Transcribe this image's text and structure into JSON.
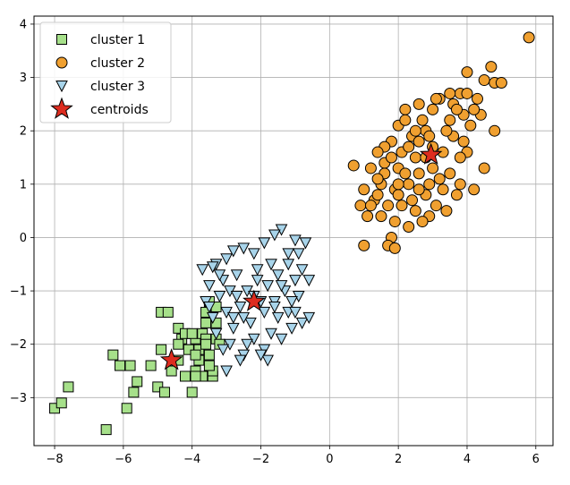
{
  "chart_data": {
    "type": "scatter",
    "title": "",
    "xlabel": "",
    "ylabel": "",
    "xlim": [
      -8.6,
      6.5
    ],
    "ylim": [
      -3.9,
      4.15
    ],
    "xticks": [
      -8,
      -6,
      -4,
      -2,
      0,
      2,
      4,
      6
    ],
    "yticks": [
      -3,
      -2,
      -1,
      0,
      1,
      2,
      3,
      4
    ],
    "xtick_labels": [
      "−8",
      "−6",
      "−4",
      "−2",
      "0",
      "2",
      "4",
      "6"
    ],
    "ytick_labels": [
      "−3",
      "−2",
      "−1",
      "0",
      "1",
      "2",
      "3",
      "4"
    ],
    "grid": true,
    "legend_position": "top-left",
    "series": [
      {
        "name": "cluster 1",
        "marker": "square",
        "color": "#a6e08a",
        "points": [
          [
            -8.0,
            -3.2
          ],
          [
            -7.8,
            -3.1
          ],
          [
            -7.6,
            -2.8
          ],
          [
            -6.5,
            -3.6
          ],
          [
            -6.3,
            -2.2
          ],
          [
            -6.1,
            -2.4
          ],
          [
            -5.9,
            -3.2
          ],
          [
            -5.8,
            -2.4
          ],
          [
            -5.7,
            -2.9
          ],
          [
            -5.6,
            -2.7
          ],
          [
            -5.2,
            -2.4
          ],
          [
            -5.0,
            -2.8
          ],
          [
            -4.9,
            -2.1
          ],
          [
            -4.8,
            -2.9
          ],
          [
            -4.9,
            -1.4
          ],
          [
            -4.7,
            -1.4
          ],
          [
            -4.6,
            -2.5
          ],
          [
            -4.4,
            -2.3
          ],
          [
            -4.3,
            -1.9
          ],
          [
            -4.2,
            -2.6
          ],
          [
            -4.1,
            -2.1
          ],
          [
            -4.0,
            -2.9
          ],
          [
            -4.4,
            -1.7
          ],
          [
            -4.2,
            -1.8
          ],
          [
            -3.9,
            -1.9
          ],
          [
            -3.8,
            -2.3
          ],
          [
            -3.7,
            -2.6
          ],
          [
            -3.6,
            -1.6
          ],
          [
            -3.5,
            -2.2
          ],
          [
            -3.4,
            -2.6
          ],
          [
            -3.5,
            -1.2
          ],
          [
            -3.6,
            -1.4
          ],
          [
            -3.3,
            -1.9
          ],
          [
            -3.4,
            -2.5
          ],
          [
            -3.9,
            -2.5
          ],
          [
            -3.5,
            -2.4
          ],
          [
            -3.7,
            -1.8
          ],
          [
            -3.2,
            -2.0
          ],
          [
            -3.3,
            -1.3
          ],
          [
            -4.4,
            -2.0
          ],
          [
            -3.8,
            -2.1
          ],
          [
            -4.0,
            -1.8
          ],
          [
            -3.9,
            -2.2
          ],
          [
            -3.6,
            -1.9
          ],
          [
            -3.9,
            -2.6
          ],
          [
            -3.3,
            -1.6
          ],
          [
            -3.6,
            -2.0
          ]
        ]
      },
      {
        "name": "cluster 2",
        "marker": "circle",
        "color": "#f0a030",
        "points": [
          [
            5.8,
            3.75
          ],
          [
            4.7,
            3.2
          ],
          [
            4.0,
            3.1
          ],
          [
            4.5,
            2.95
          ],
          [
            4.8,
            2.9
          ],
          [
            5.0,
            2.9
          ],
          [
            3.8,
            2.7
          ],
          [
            3.2,
            2.6
          ],
          [
            3.6,
            2.5
          ],
          [
            3.0,
            2.4
          ],
          [
            2.6,
            2.5
          ],
          [
            2.2,
            2.4
          ],
          [
            3.9,
            2.3
          ],
          [
            4.1,
            2.1
          ],
          [
            4.4,
            2.3
          ],
          [
            3.5,
            2.2
          ],
          [
            2.8,
            2.0
          ],
          [
            2.4,
            1.9
          ],
          [
            2.0,
            2.1
          ],
          [
            1.8,
            1.8
          ],
          [
            4.8,
            2.0
          ],
          [
            3.6,
            1.9
          ],
          [
            3.0,
            1.7
          ],
          [
            2.5,
            1.5
          ],
          [
            2.1,
            1.6
          ],
          [
            1.6,
            1.7
          ],
          [
            1.4,
            1.6
          ],
          [
            4.0,
            1.6
          ],
          [
            3.8,
            1.5
          ],
          [
            3.5,
            1.2
          ],
          [
            3.0,
            1.3
          ],
          [
            2.6,
            1.2
          ],
          [
            2.0,
            1.3
          ],
          [
            1.6,
            1.2
          ],
          [
            1.2,
            1.3
          ],
          [
            0.7,
            1.35
          ],
          [
            1.5,
            1.0
          ],
          [
            1.9,
            0.9
          ],
          [
            2.3,
            1.0
          ],
          [
            2.8,
            0.8
          ],
          [
            3.3,
            0.9
          ],
          [
            3.8,
            1.0
          ],
          [
            4.2,
            0.9
          ],
          [
            1.0,
            0.9
          ],
          [
            1.3,
            0.7
          ],
          [
            1.7,
            0.6
          ],
          [
            2.1,
            0.6
          ],
          [
            2.5,
            0.5
          ],
          [
            2.9,
            0.4
          ],
          [
            3.4,
            0.5
          ],
          [
            0.9,
            0.6
          ],
          [
            1.1,
            0.4
          ],
          [
            1.5,
            0.4
          ],
          [
            1.9,
            0.3
          ],
          [
            2.3,
            0.2
          ],
          [
            2.7,
            0.3
          ],
          [
            1.8,
            0.0
          ],
          [
            1.7,
            -0.15
          ],
          [
            1.9,
            -0.2
          ],
          [
            1.0,
            -0.15
          ],
          [
            4.0,
            2.7
          ],
          [
            3.4,
            2.0
          ],
          [
            2.7,
            2.2
          ],
          [
            2.3,
            1.7
          ],
          [
            3.2,
            1.1
          ],
          [
            3.7,
            0.8
          ],
          [
            2.6,
            0.9
          ],
          [
            2.0,
            0.8
          ],
          [
            1.4,
            0.8
          ],
          [
            3.1,
            2.6
          ],
          [
            2.9,
            1.9
          ],
          [
            4.3,
            2.6
          ],
          [
            2.2,
            2.2
          ],
          [
            3.3,
            1.6
          ],
          [
            2.4,
            0.7
          ],
          [
            1.6,
            1.4
          ],
          [
            3.7,
            2.4
          ],
          [
            4.2,
            2.4
          ],
          [
            2.0,
            1.0
          ],
          [
            1.2,
            0.6
          ],
          [
            2.8,
            1.5
          ],
          [
            3.1,
            0.6
          ],
          [
            2.5,
            2.0
          ],
          [
            1.8,
            1.5
          ],
          [
            3.9,
            1.8
          ],
          [
            4.5,
            1.3
          ],
          [
            2.2,
            1.2
          ],
          [
            3.5,
            2.7
          ],
          [
            2.9,
            1.0
          ],
          [
            1.4,
            1.1
          ],
          [
            2.6,
            1.8
          ]
        ]
      },
      {
        "name": "cluster 3",
        "marker": "triangle-down",
        "color": "#a8d4ea",
        "points": [
          [
            -1.4,
            0.15
          ],
          [
            -1.6,
            0.05
          ],
          [
            -1.0,
            -0.05
          ],
          [
            -0.7,
            -0.1
          ],
          [
            -1.9,
            -0.1
          ],
          [
            -2.5,
            -0.2
          ],
          [
            -2.8,
            -0.25
          ],
          [
            -3.0,
            -0.4
          ],
          [
            -3.3,
            -0.5
          ],
          [
            -3.7,
            -0.6
          ],
          [
            -3.4,
            -0.55
          ],
          [
            -2.2,
            -0.3
          ],
          [
            -1.2,
            -0.3
          ],
          [
            -0.9,
            -0.3
          ],
          [
            -1.7,
            -0.5
          ],
          [
            -2.1,
            -0.6
          ],
          [
            -2.7,
            -0.7
          ],
          [
            -3.1,
            -0.8
          ],
          [
            -3.5,
            -0.9
          ],
          [
            -1.5,
            -0.7
          ],
          [
            -1.0,
            -0.8
          ],
          [
            -0.6,
            -0.8
          ],
          [
            -1.8,
            -0.9
          ],
          [
            -2.4,
            -1.0
          ],
          [
            -2.9,
            -1.0
          ],
          [
            -3.2,
            -1.1
          ],
          [
            -3.6,
            -1.2
          ],
          [
            -1.3,
            -1.0
          ],
          [
            -0.9,
            -1.1
          ],
          [
            -1.6,
            -1.2
          ],
          [
            -2.0,
            -1.2
          ],
          [
            -2.6,
            -1.3
          ],
          [
            -3.0,
            -1.4
          ],
          [
            -3.4,
            -1.5
          ],
          [
            -1.2,
            -1.4
          ],
          [
            -0.8,
            -1.6
          ],
          [
            -1.5,
            -1.5
          ],
          [
            -2.3,
            -1.6
          ],
          [
            -2.8,
            -1.7
          ],
          [
            -3.3,
            -1.8
          ],
          [
            -0.6,
            -1.5
          ],
          [
            -1.1,
            -1.7
          ],
          [
            -1.7,
            -1.8
          ],
          [
            -2.2,
            -1.9
          ],
          [
            -2.9,
            -2.0
          ],
          [
            -3.1,
            -2.1
          ],
          [
            -1.9,
            -2.1
          ],
          [
            -2.5,
            -2.2
          ],
          [
            -1.8,
            -2.3
          ],
          [
            -2.6,
            -2.3
          ],
          [
            -2.0,
            -2.2
          ],
          [
            -3.0,
            -2.5
          ],
          [
            -1.2,
            -0.5
          ],
          [
            -0.8,
            -0.6
          ],
          [
            -1.4,
            -0.9
          ],
          [
            -2.1,
            -0.8
          ],
          [
            -2.7,
            -1.1
          ],
          [
            -3.2,
            -0.7
          ],
          [
            -1.1,
            -1.2
          ],
          [
            -1.9,
            -1.4
          ],
          [
            -2.5,
            -1.5
          ],
          [
            -3.5,
            -1.3
          ],
          [
            -1.4,
            -1.9
          ],
          [
            -2.4,
            -2.0
          ],
          [
            -1.6,
            -1.3
          ],
          [
            -2.2,
            -1.1
          ],
          [
            -1.0,
            -1.4
          ],
          [
            -2.8,
            -1.5
          ]
        ]
      },
      {
        "name": "centroids",
        "marker": "star",
        "color": "#dd2c1f",
        "points": [
          [
            -4.6,
            -2.3
          ],
          [
            2.95,
            1.55
          ],
          [
            -2.2,
            -1.2
          ]
        ]
      }
    ]
  }
}
